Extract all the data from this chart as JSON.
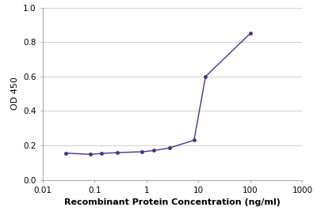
{
  "x_values": [
    0.0274,
    0.0823,
    0.137,
    0.274,
    0.823,
    1.37,
    2.74,
    8.23,
    13.7,
    100.0
  ],
  "y_values": [
    0.155,
    0.148,
    0.153,
    0.158,
    0.163,
    0.17,
    0.185,
    0.23,
    0.6,
    0.85
  ],
  "line_color": "#3a3a8c",
  "marker_color": "#3a3a8c",
  "marker_style": "o",
  "marker_size": 3,
  "line_width": 1.0,
  "xlabel": "Recombinant Protein Concentration (ng/ml)",
  "ylabel": "OD 450",
  "xlim_log": [
    0.01,
    1000
  ],
  "ylim": [
    0.0,
    1.0
  ],
  "yticks": [
    0.0,
    0.2,
    0.4,
    0.6,
    0.8,
    1.0
  ],
  "xticks": [
    0.01,
    0.1,
    1,
    10,
    100,
    1000
  ],
  "xtick_labels": [
    "0.01",
    "0.1",
    "1",
    "10",
    "100",
    "1000"
  ],
  "grid_color": "#c8c8c8",
  "background_color": "#ffffff",
  "xlabel_fontsize": 8,
  "ylabel_fontsize": 8,
  "tick_fontsize": 7.5,
  "spine_color": "#aaaaaa"
}
